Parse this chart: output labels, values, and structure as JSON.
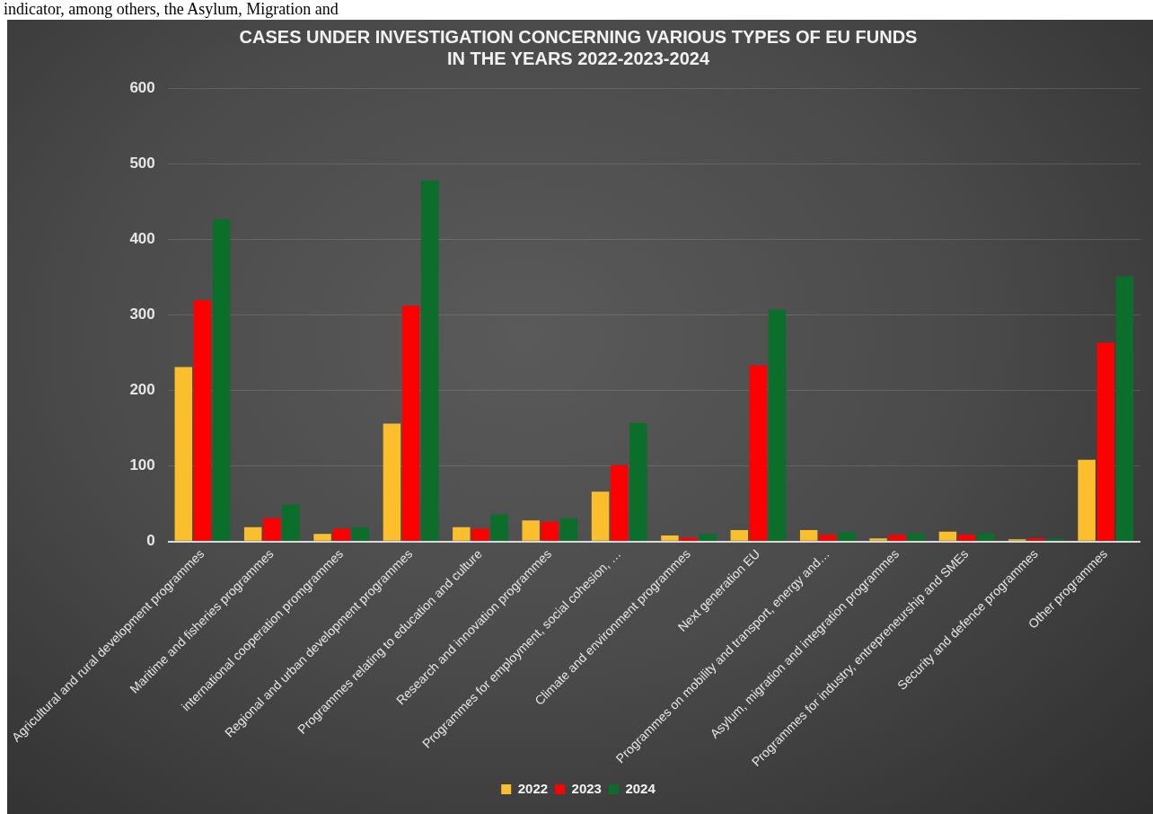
{
  "chart_data": {
    "type": "bar",
    "title": "CASES UNDER INVESTIGATION CONCERNING VARIOUS TYPES OF EU FUNDS\nIN THE YEARS 2022-2023-2024",
    "annotations": [
      "indicator, among others, the Asylum, Migration and"
    ],
    "categories": [
      "Agricultural and rural development programmes",
      "Maritime and fisheries programmes",
      "international cooperation promgrammes",
      "Regional and urban development programmes",
      "Programmes relating to education and culture",
      "Research and innovation programmes",
      "Programmes for employment, social cohesion, …",
      "Climate and environment programmes",
      "Next generation EU",
      "Programmes on mobility and transport, energy and…",
      "Asylum, migration and integration programmes",
      "Programmes for industry, entrepreneurship and SMEs",
      "Security and defence programmes",
      "Other programmes"
    ],
    "series": [
      {
        "name": "2022",
        "color": "#fbbf2d",
        "values": [
          231,
          19,
          10,
          156,
          19,
          28,
          66,
          8,
          15,
          15,
          4,
          13,
          3,
          108
        ]
      },
      {
        "name": "2023",
        "color": "#ff0000",
        "values": [
          319,
          31,
          17,
          312,
          17,
          26,
          101,
          5,
          233,
          9,
          9,
          9,
          4,
          263
        ]
      },
      {
        "name": "2024",
        "color": "#0b6e2b",
        "values": [
          426,
          49,
          19,
          478,
          36,
          31,
          157,
          10,
          307,
          12,
          11,
          11,
          4,
          351
        ]
      }
    ],
    "ylim": [
      0,
      600
    ],
    "yticks": [
      0,
      100,
      200,
      300,
      400,
      500,
      600
    ],
    "grid": "y",
    "legend": "bottom"
  }
}
